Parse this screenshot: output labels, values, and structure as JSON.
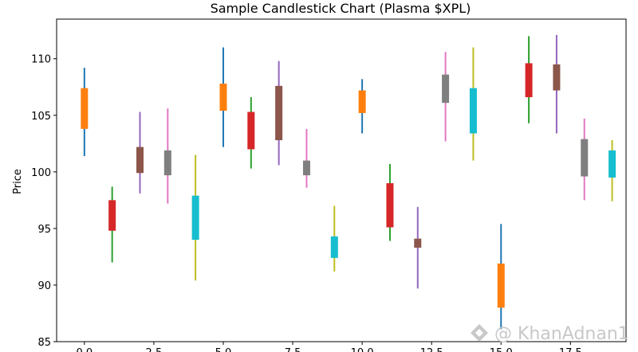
{
  "chart_data": {
    "type": "candlestick",
    "title": "Sample Candlestick Chart (Plasma $XPL)",
    "xlabel": "",
    "ylabel": "Price",
    "xlim": [
      -1,
      19.5
    ],
    "ylim": [
      85,
      113.5
    ],
    "x_ticks": [
      0.0,
      2.5,
      5.0,
      7.5,
      10.0,
      12.5,
      15.0,
      17.5
    ],
    "x_tick_labels": [
      "0.0",
      "2.5",
      "5.0",
      "7.5",
      "10.0",
      "12.5",
      "15.0",
      "17.5"
    ],
    "y_ticks": [
      85,
      90,
      95,
      100,
      105,
      110
    ],
    "y_tick_labels": [
      "85",
      "90",
      "95",
      "100",
      "105",
      "110"
    ],
    "grid": false,
    "candles": [
      {
        "x": 0,
        "open": 103.8,
        "close": 107.4,
        "high": 109.2,
        "low": 101.4,
        "color": "#ff7f0e",
        "wick_color": "#1f77b4"
      },
      {
        "x": 1,
        "open": 97.5,
        "close": 94.8,
        "high": 98.7,
        "low": 92.0,
        "color": "#d62728",
        "wick_color": "#2ca02c"
      },
      {
        "x": 2,
        "open": 102.2,
        "close": 99.9,
        "high": 105.3,
        "low": 98.1,
        "color": "#8c564b",
        "wick_color": "#9467bd"
      },
      {
        "x": 3,
        "open": 101.9,
        "close": 99.7,
        "high": 105.6,
        "low": 97.2,
        "color": "#7f7f7f",
        "wick_color": "#e377c2"
      },
      {
        "x": 4,
        "open": 97.9,
        "close": 94.0,
        "high": 101.5,
        "low": 90.4,
        "color": "#17becf",
        "wick_color": "#bcbd22"
      },
      {
        "x": 5,
        "open": 105.4,
        "close": 107.8,
        "high": 111.0,
        "low": 102.2,
        "color": "#ff7f0e",
        "wick_color": "#1f77b4"
      },
      {
        "x": 6,
        "open": 105.3,
        "close": 102.0,
        "high": 106.6,
        "low": 100.3,
        "color": "#d62728",
        "wick_color": "#2ca02c"
      },
      {
        "x": 7,
        "open": 107.6,
        "close": 102.8,
        "high": 109.8,
        "low": 100.6,
        "color": "#8c564b",
        "wick_color": "#9467bd"
      },
      {
        "x": 8,
        "open": 101.0,
        "close": 99.7,
        "high": 103.8,
        "low": 98.6,
        "color": "#7f7f7f",
        "wick_color": "#e377c2"
      },
      {
        "x": 9,
        "open": 92.4,
        "close": 94.3,
        "high": 97.0,
        "low": 91.2,
        "color": "#17becf",
        "wick_color": "#bcbd22"
      },
      {
        "x": 10,
        "open": 105.2,
        "close": 107.2,
        "high": 108.2,
        "low": 103.4,
        "color": "#ff7f0e",
        "wick_color": "#1f77b4"
      },
      {
        "x": 11,
        "open": 99.0,
        "close": 95.1,
        "high": 100.7,
        "low": 93.9,
        "color": "#d62728",
        "wick_color": "#2ca02c"
      },
      {
        "x": 12,
        "open": 94.1,
        "close": 93.3,
        "high": 96.9,
        "low": 89.7,
        "color": "#8c564b",
        "wick_color": "#9467bd"
      },
      {
        "x": 13,
        "open": 108.6,
        "close": 106.1,
        "high": 110.6,
        "low": 102.7,
        "color": "#7f7f7f",
        "wick_color": "#e377c2"
      },
      {
        "x": 14,
        "open": 107.4,
        "close": 103.4,
        "high": 111.0,
        "low": 101.0,
        "color": "#17becf",
        "wick_color": "#bcbd22"
      },
      {
        "x": 15,
        "open": 88.0,
        "close": 91.9,
        "high": 95.4,
        "low": 86.1,
        "color": "#ff7f0e",
        "wick_color": "#1f77b4"
      },
      {
        "x": 16,
        "open": 109.6,
        "close": 106.6,
        "high": 112.0,
        "low": 104.3,
        "color": "#d62728",
        "wick_color": "#2ca02c"
      },
      {
        "x": 17,
        "open": 109.5,
        "close": 107.2,
        "high": 112.1,
        "low": 103.4,
        "color": "#8c564b",
        "wick_color": "#9467bd"
      },
      {
        "x": 18,
        "open": 102.9,
        "close": 99.6,
        "high": 104.7,
        "low": 97.5,
        "color": "#7f7f7f",
        "wick_color": "#e377c2"
      },
      {
        "x": 19,
        "open": 101.9,
        "close": 99.5,
        "high": 102.8,
        "low": 97.4,
        "color": "#17becf",
        "wick_color": "#bcbd22"
      }
    ]
  },
  "watermark": {
    "text": "@ KhanAdnan1"
  }
}
